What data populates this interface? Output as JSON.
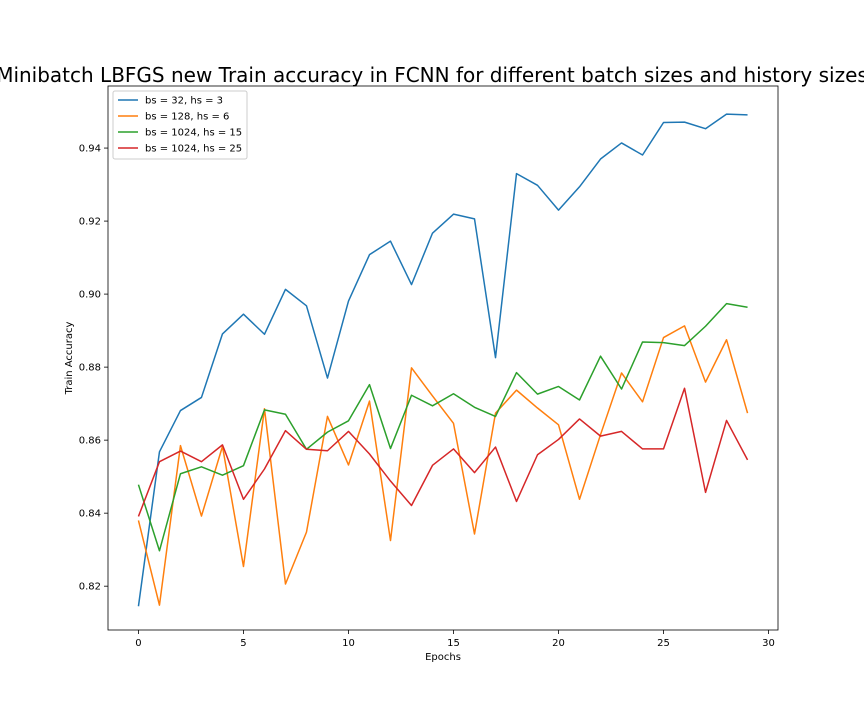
{
  "chart_data": {
    "type": "line",
    "title": "Minibatch LBFGS new Train accuracy in FCNN for different batch sizes and history sizes",
    "xlabel": "Epochs",
    "ylabel": "Train Accuracy",
    "xlim": [
      -1.45,
      30.45
    ],
    "ylim": [
      0.808,
      0.957
    ],
    "xticks": [
      0,
      5,
      10,
      15,
      20,
      25,
      30
    ],
    "yticks": [
      0.82,
      0.84,
      0.86,
      0.88,
      0.9,
      0.92,
      0.94
    ],
    "ytick_labels": [
      "0.82",
      "0.84",
      "0.86",
      "0.88",
      "0.90",
      "0.92",
      "0.94"
    ],
    "grid": false,
    "legend_position": "top-left",
    "x": [
      0,
      1,
      2,
      3,
      4,
      5,
      6,
      7,
      8,
      9,
      10,
      11,
      12,
      13,
      14,
      15,
      16,
      17,
      18,
      19,
      20,
      21,
      22,
      23,
      24,
      25,
      26,
      27,
      28,
      29
    ],
    "series": [
      {
        "name": "bs = 32, hs = 3",
        "color": "#1f77b4",
        "values": [
          0.8145,
          0.8568,
          0.8681,
          0.8717,
          0.8891,
          0.8945,
          0.889,
          0.9013,
          0.8968,
          0.877,
          0.8981,
          0.9108,
          0.9145,
          0.9026,
          0.9167,
          0.9219,
          0.9206,
          0.8826,
          0.933,
          0.9298,
          0.923,
          0.9294,
          0.937,
          0.9414,
          0.9381,
          0.947,
          0.9471,
          0.9453,
          0.9493,
          0.9491
        ]
      },
      {
        "name": "bs = 128, hs = 6",
        "color": "#ff7f0e",
        "values": [
          0.838,
          0.8148,
          0.8585,
          0.8392,
          0.8583,
          0.8254,
          0.8686,
          0.8206,
          0.8348,
          0.8665,
          0.8532,
          0.8707,
          0.8325,
          0.8798,
          0.8721,
          0.8646,
          0.8343,
          0.8674,
          0.8737,
          0.8688,
          0.8642,
          0.8438,
          0.8615,
          0.8784,
          0.8705,
          0.8881,
          0.8913,
          0.8759,
          0.8875,
          0.8674
        ]
      },
      {
        "name": "bs = 1024, hs = 15",
        "color": "#2ca02c",
        "values": [
          0.8478,
          0.8297,
          0.8508,
          0.8527,
          0.8504,
          0.853,
          0.8683,
          0.8671,
          0.8575,
          0.8622,
          0.8653,
          0.8752,
          0.8577,
          0.8723,
          0.8694,
          0.8727,
          0.869,
          0.8665,
          0.8785,
          0.8726,
          0.8747,
          0.871,
          0.883,
          0.874,
          0.8869,
          0.8867,
          0.8859,
          0.8912,
          0.8974,
          0.8964
        ]
      },
      {
        "name": "bs = 1024, hs = 25",
        "color": "#d62728",
        "values": [
          0.8391,
          0.8541,
          0.857,
          0.8541,
          0.8587,
          0.8438,
          0.8521,
          0.8626,
          0.8575,
          0.8571,
          0.8624,
          0.8562,
          0.8488,
          0.8421,
          0.8531,
          0.8576,
          0.8511,
          0.8581,
          0.8432,
          0.856,
          0.8602,
          0.8658,
          0.8611,
          0.8624,
          0.8576,
          0.8576,
          0.8742,
          0.8457,
          0.8654,
          0.8546
        ]
      }
    ]
  }
}
